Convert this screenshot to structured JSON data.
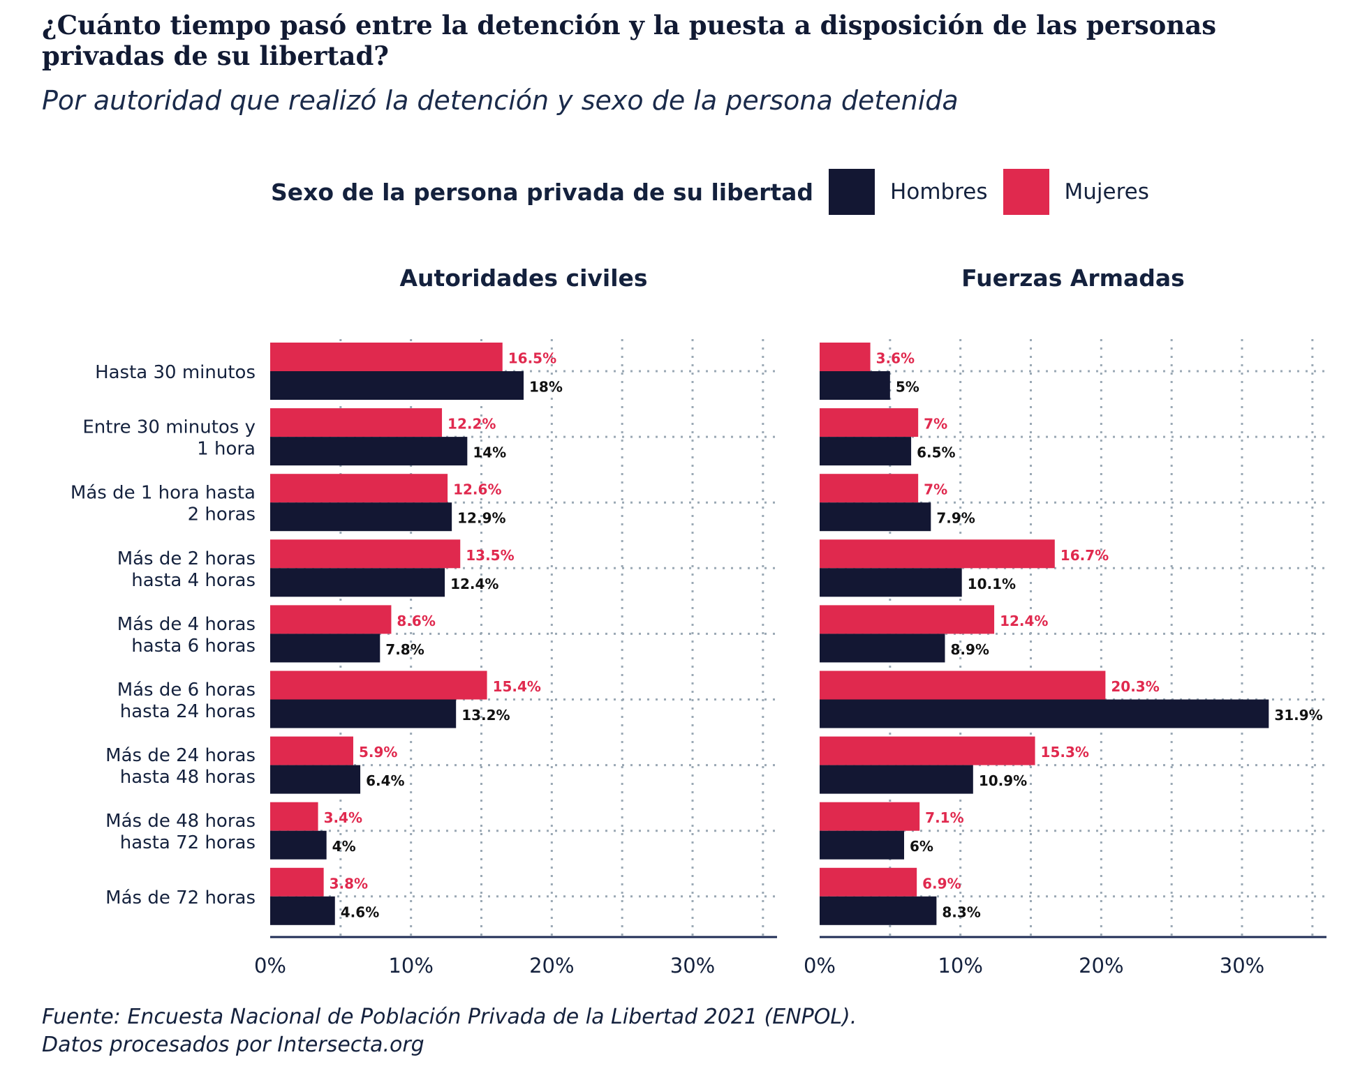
{
  "title": "¿Cuánto tiempo pasó entre la detención y la puesta a disposición de las personas privadas de su libertad?",
  "subtitle": "Por autoridad que realizó la detención y sexo de la persona detenida",
  "legend": {
    "title": "Sexo de la persona privada de su libertad",
    "items": [
      {
        "label": "Hombres",
        "color": "#131733"
      },
      {
        "label": "Mujeres",
        "color": "#e0294e"
      }
    ]
  },
  "source": [
    "Fuente: Encuesta Nacional de Población Privada de la Libertad 2021 (ENPOL).",
    "Datos procesados por Intersecta.org"
  ],
  "chart_data": [
    {
      "type": "bar",
      "orientation": "horizontal",
      "panel_title": "Autoridades civiles",
      "categories": [
        [
          "Hasta 30 minutos"
        ],
        [
          "Entre 30 minutos y",
          "1 hora"
        ],
        [
          "Más de 1 hora hasta",
          "2 horas"
        ],
        [
          "Más de 2 horas",
          "hasta 4 horas"
        ],
        [
          "Más de 4 horas",
          "hasta 6 horas"
        ],
        [
          "Más de 6 horas",
          "hasta 24 horas"
        ],
        [
          "Más de 24 horas",
          "hasta 48 horas"
        ],
        [
          "Más de 48 horas",
          "hasta 72 horas"
        ],
        [
          "Más de 72 horas"
        ]
      ],
      "series": [
        {
          "name": "Mujeres",
          "color": "#e0294e",
          "values": [
            16.5,
            12.2,
            12.6,
            13.5,
            8.6,
            15.4,
            5.9,
            3.4,
            3.8
          ],
          "labels": [
            "16.5%",
            "12.2%",
            "12.6%",
            "13.5%",
            "8.6%",
            "15.4%",
            "5.9%",
            "3.4%",
            "3.8%"
          ]
        },
        {
          "name": "Hombres",
          "color": "#131733",
          "values": [
            18,
            14,
            12.9,
            12.4,
            7.8,
            13.2,
            6.4,
            4,
            4.6
          ],
          "labels": [
            "18%",
            "14%",
            "12.9%",
            "12.4%",
            "7.8%",
            "13.2%",
            "6.4%",
            "4%",
            "4.6%"
          ]
        }
      ],
      "xlim": [
        0,
        36
      ],
      "xticks": [
        0,
        10,
        20,
        30
      ],
      "xtick_labels": [
        "0%",
        "10%",
        "20%",
        "30%"
      ],
      "grid": true
    },
    {
      "type": "bar",
      "orientation": "horizontal",
      "panel_title": "Fuerzas Armadas",
      "categories": [
        [
          "Hasta 30 minutos"
        ],
        [
          "Entre 30 minutos y",
          "1 hora"
        ],
        [
          "Más de 1 hora hasta",
          "2 horas"
        ],
        [
          "Más de 2 horas",
          "hasta 4 horas"
        ],
        [
          "Más de 4 horas",
          "hasta 6 horas"
        ],
        [
          "Más de 6 horas",
          "hasta 24 horas"
        ],
        [
          "Más de 24 horas",
          "hasta 48 horas"
        ],
        [
          "Más de 48 horas",
          "hasta 72 horas"
        ],
        [
          "Más de 72 horas"
        ]
      ],
      "series": [
        {
          "name": "Mujeres",
          "color": "#e0294e",
          "values": [
            3.6,
            7,
            7,
            16.7,
            12.4,
            20.3,
            15.3,
            7.1,
            6.9
          ],
          "labels": [
            "3.6%",
            "7%",
            "7%",
            "16.7%",
            "12.4%",
            "20.3%",
            "15.3%",
            "7.1%",
            "6.9%"
          ]
        },
        {
          "name": "Hombres",
          "color": "#131733",
          "values": [
            5,
            6.5,
            7.9,
            10.1,
            8.9,
            31.9,
            10.9,
            6,
            8.3
          ],
          "labels": [
            "5%",
            "6.5%",
            "7.9%",
            "10.1%",
            "8.9%",
            "31.9%",
            "10.9%",
            "6%",
            "8.3%"
          ]
        }
      ],
      "xlim": [
        0,
        36
      ],
      "xticks": [
        0,
        10,
        20,
        30
      ],
      "xtick_labels": [
        "0%",
        "10%",
        "20%",
        "30%"
      ],
      "grid": true
    }
  ]
}
